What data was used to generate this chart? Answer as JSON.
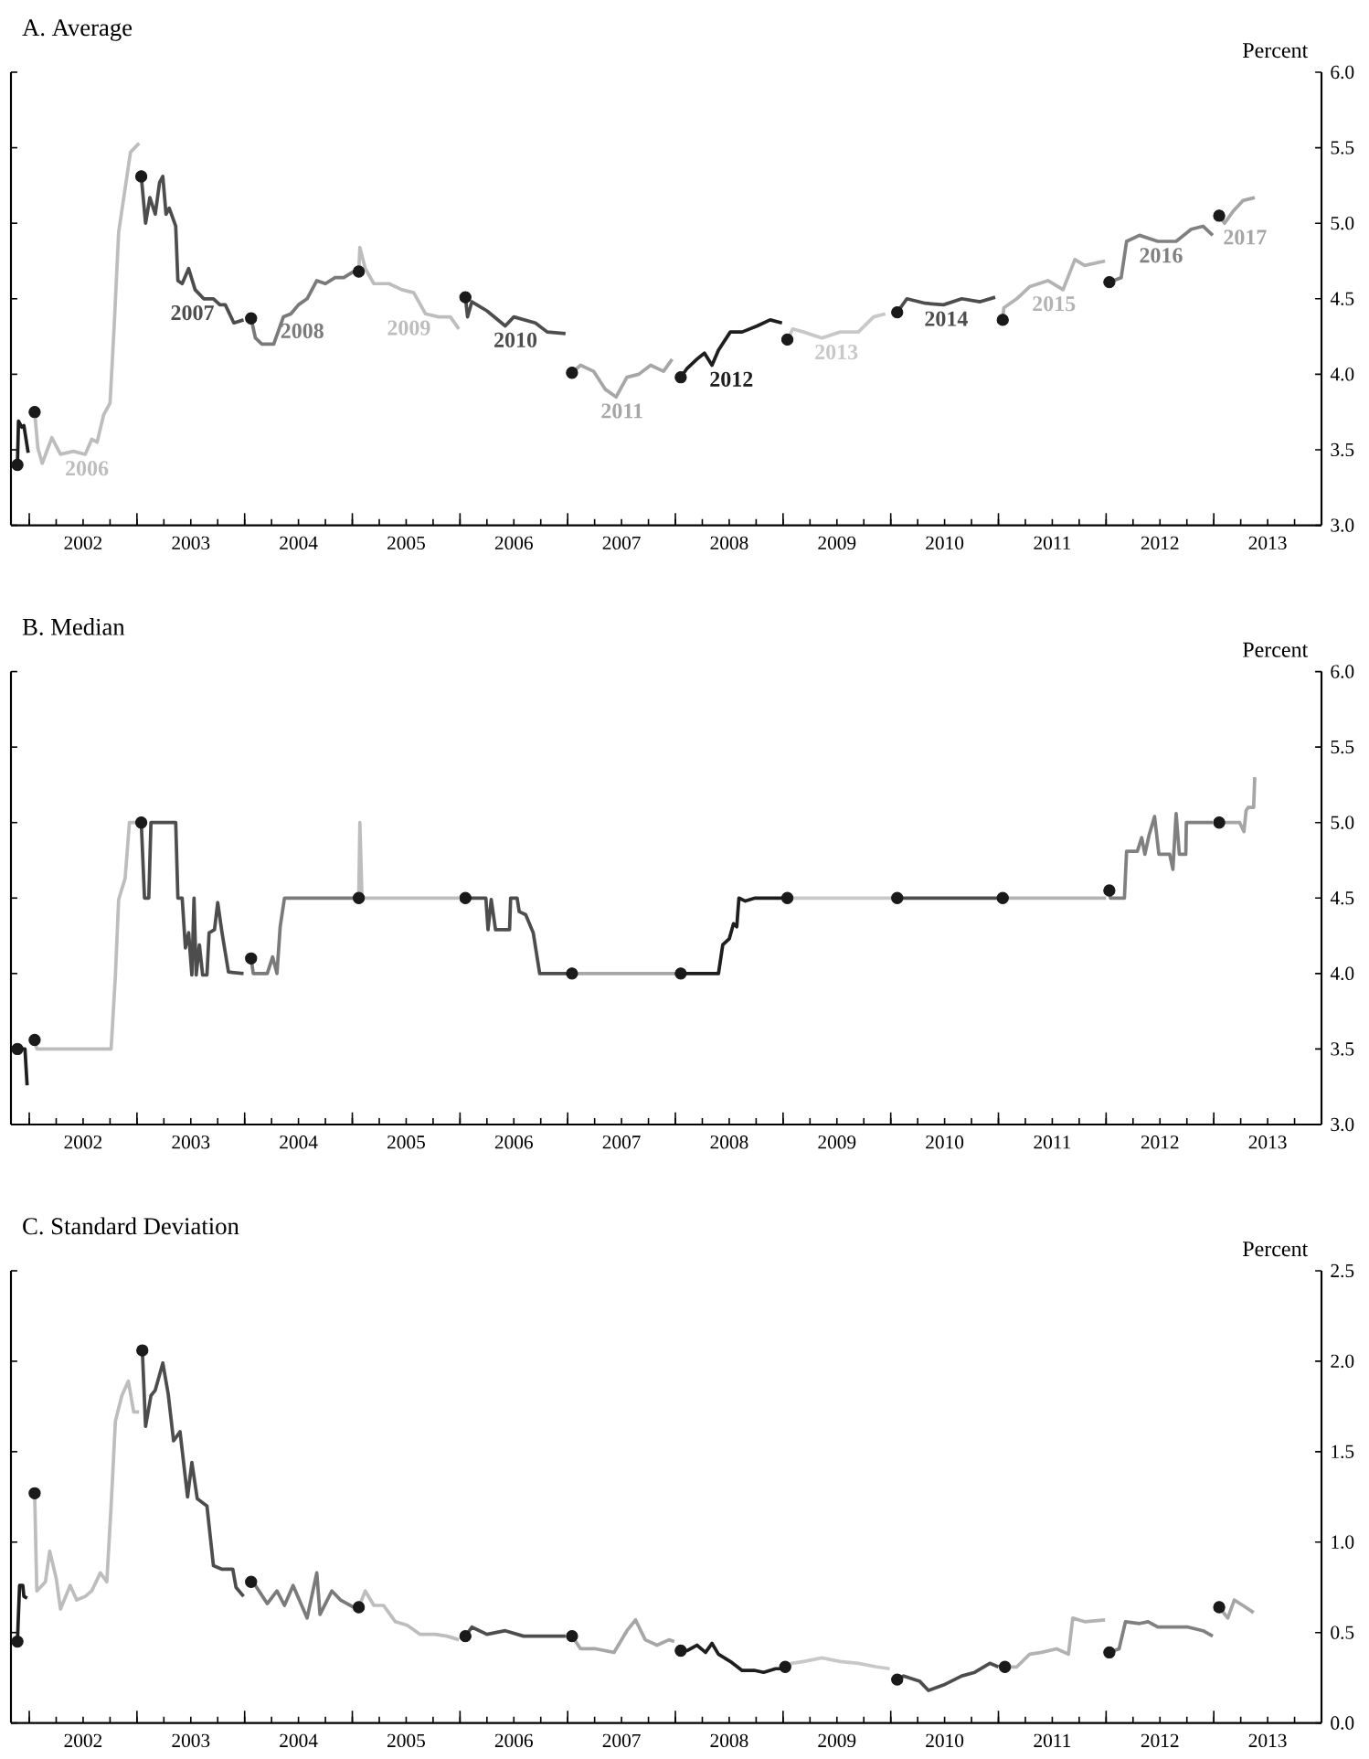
{
  "chart_data": [
    {
      "type": "line",
      "title": "A. Average",
      "ylabel": "Percent",
      "xlim": [
        2001.83,
        2014
      ],
      "ylim": [
        3,
        6
      ],
      "yticks": [
        {
          "value": 3,
          "label": "3.0"
        },
        {
          "value": 3.5,
          "label": "3.5"
        },
        {
          "value": 4,
          "label": "4.0"
        },
        {
          "value": 4.5,
          "label": "4.5"
        },
        {
          "value": 5,
          "label": "5.0"
        },
        {
          "value": 5.5,
          "label": "5.5"
        },
        {
          "value": 6,
          "label": "6.0"
        }
      ],
      "xticks": [
        {
          "value": 2002,
          "label": null
        },
        {
          "value": 2002.25,
          "label": null
        },
        {
          "value": 2002.5,
          "label": "2002"
        },
        {
          "value": 2002.75,
          "label": null
        },
        {
          "value": 2003,
          "label": null
        },
        {
          "value": 2003.25,
          "label": null
        },
        {
          "value": 2003.5,
          "label": "2003"
        },
        {
          "value": 2003.75,
          "label": null
        },
        {
          "value": 2004,
          "label": null
        },
        {
          "value": 2004.25,
          "label": null
        },
        {
          "value": 2004.5,
          "label": "2004"
        },
        {
          "value": 2004.75,
          "label": null
        },
        {
          "value": 2005,
          "label": null
        },
        {
          "value": 2005.25,
          "label": null
        },
        {
          "value": 2005.5,
          "label": "2005"
        },
        {
          "value": 2005.75,
          "label": null
        },
        {
          "value": 2006,
          "label": null
        },
        {
          "value": 2006.25,
          "label": null
        },
        {
          "value": 2006.5,
          "label": "2006"
        },
        {
          "value": 2006.75,
          "label": null
        },
        {
          "value": 2007,
          "label": null
        },
        {
          "value": 2007.25,
          "label": null
        },
        {
          "value": 2007.5,
          "label": "2007"
        },
        {
          "value": 2007.75,
          "label": null
        },
        {
          "value": 2008,
          "label": null
        },
        {
          "value": 2008.25,
          "label": null
        },
        {
          "value": 2008.5,
          "label": "2008"
        },
        {
          "value": 2008.75,
          "label": null
        },
        {
          "value": 2009,
          "label": null
        },
        {
          "value": 2009.25,
          "label": null
        },
        {
          "value": 2009.5,
          "label": "2009"
        },
        {
          "value": 2009.75,
          "label": null
        },
        {
          "value": 2010,
          "label": null
        },
        {
          "value": 2010.25,
          "label": null
        },
        {
          "value": 2010.5,
          "label": "2010"
        },
        {
          "value": 2010.75,
          "label": null
        },
        {
          "value": 2011,
          "label": null
        },
        {
          "value": 2011.25,
          "label": null
        },
        {
          "value": 2011.5,
          "label": "2011"
        },
        {
          "value": 2011.75,
          "label": null
        },
        {
          "value": 2012,
          "label": null
        },
        {
          "value": 2012.25,
          "label": null
        },
        {
          "value": 2012.5,
          "label": "2012"
        },
        {
          "value": 2012.75,
          "label": null
        },
        {
          "value": 2013,
          "label": null
        },
        {
          "value": 2013.25,
          "label": null
        },
        {
          "value": 2013.5,
          "label": "2013"
        },
        {
          "value": 2013.75,
          "label": null
        }
      ],
      "series": [
        {
          "color": "#1e1e1e",
          "x": [
            2001.89,
            2001.9,
            2001.93,
            2001.95,
            2001.99
          ],
          "values": [
            3.4,
            3.69,
            3.65,
            3.66,
            3.48
          ]
        },
        {
          "name": "2006",
          "color": "#bdbdbd",
          "x": [
            2002.05,
            2002.08,
            2002.12,
            2002.21,
            2002.29,
            2002.41,
            2002.52,
            2002.58,
            2002.63,
            2002.69,
            2002.75,
            2002.79,
            2002.83,
            2002.89,
            2002.94,
            2003.02
          ],
          "values": [
            3.75,
            3.51,
            3.41,
            3.58,
            3.47,
            3.49,
            3.47,
            3.57,
            3.55,
            3.73,
            3.81,
            4.34,
            4.94,
            5.23,
            5.47,
            5.53
          ]
        },
        {
          "name": "2007",
          "color": "#4d4d4d",
          "x": [
            2003.04,
            2003.08,
            2003.12,
            2003.17,
            2003.21,
            2003.24,
            2003.27,
            2003.3,
            2003.36,
            2003.38,
            2003.42,
            2003.48,
            2003.54,
            2003.62,
            2003.71,
            2003.77,
            2003.82,
            2003.9,
            2003.99
          ],
          "values": [
            5.31,
            5.0,
            5.17,
            5.06,
            5.27,
            5.31,
            5.06,
            5.1,
            4.98,
            4.62,
            4.6,
            4.7,
            4.56,
            4.5,
            4.5,
            4.46,
            4.46,
            4.34,
            4.36
          ]
        },
        {
          "name": "2008",
          "color": "#7a7a7a",
          "x": [
            2004.06,
            2004.1,
            2004.16,
            2004.27,
            2004.36,
            2004.43,
            2004.5,
            2004.58,
            2004.67,
            2004.75,
            2004.84,
            2004.92,
            2005.01
          ],
          "values": [
            4.37,
            4.24,
            4.2,
            4.2,
            4.38,
            4.4,
            4.46,
            4.5,
            4.62,
            4.6,
            4.64,
            4.64,
            4.68
          ]
        },
        {
          "name": "2009",
          "color": "#bdbdbd",
          "x": [
            2005.06,
            2005.07,
            2005.12,
            2005.2,
            2005.34,
            2005.46,
            2005.57,
            2005.68,
            2005.8,
            2005.91,
            2005.99
          ],
          "values": [
            4.68,
            4.84,
            4.7,
            4.6,
            4.6,
            4.56,
            4.54,
            4.4,
            4.38,
            4.38,
            4.3
          ]
        },
        {
          "name": "2010",
          "color": "#4d4d4d",
          "x": [
            2006.05,
            2006.07,
            2006.11,
            2006.25,
            2006.42,
            2006.5,
            2006.7,
            2006.81,
            2006.98
          ],
          "values": [
            4.51,
            4.38,
            4.48,
            4.42,
            4.32,
            4.38,
            4.34,
            4.28,
            4.27
          ]
        },
        {
          "name": "2011",
          "color": "#a6a6a6",
          "x": [
            2007.04,
            2007.12,
            2007.24,
            2007.35,
            2007.45,
            2007.55,
            2007.66,
            2007.77,
            2007.89,
            2007.97
          ],
          "values": [
            4.01,
            4.06,
            4.02,
            3.9,
            3.85,
            3.98,
            4.0,
            4.06,
            4.02,
            4.1
          ]
        },
        {
          "name": "2012",
          "color": "#1e1e1e",
          "x": [
            2008.05,
            2008.11,
            2008.2,
            2008.27,
            2008.34,
            2008.4,
            2008.51,
            2008.62,
            2008.76,
            2008.88,
            2008.99
          ],
          "values": [
            3.98,
            4.04,
            4.1,
            4.14,
            4.06,
            4.16,
            4.28,
            4.28,
            4.32,
            4.36,
            4.34
          ]
        },
        {
          "name": "2013",
          "color": "#c8c8c8",
          "x": [
            2009.04,
            2009.09,
            2009.19,
            2009.36,
            2009.53,
            2009.7,
            2009.84,
            2009.95
          ],
          "values": [
            4.23,
            4.3,
            4.28,
            4.24,
            4.28,
            4.28,
            4.38,
            4.4
          ]
        },
        {
          "name": "2014",
          "color": "#4d4d4d",
          "x": [
            2010.06,
            2010.15,
            2010.32,
            2010.49,
            2010.66,
            2010.83,
            2010.97
          ],
          "values": [
            4.41,
            4.5,
            4.47,
            4.46,
            4.5,
            4.48,
            4.51
          ]
        },
        {
          "name": "2015",
          "color": "#b3b3b3",
          "x": [
            2011.04,
            2011.05,
            2011.17,
            2011.29,
            2011.46,
            2011.6,
            2011.71,
            2011.8,
            2011.99
          ],
          "values": [
            4.36,
            4.44,
            4.5,
            4.58,
            4.62,
            4.56,
            4.76,
            4.72,
            4.75
          ]
        },
        {
          "name": "2016",
          "color": "#808080",
          "x": [
            2012.03,
            2012.14,
            2012.19,
            2012.31,
            2012.48,
            2012.65,
            2012.79,
            2012.9,
            2012.99
          ],
          "values": [
            4.61,
            4.64,
            4.88,
            4.92,
            4.88,
            4.88,
            4.96,
            4.98,
            4.92
          ]
        },
        {
          "name": "2017",
          "color": "#a6a6a6",
          "x": [
            2013.05,
            2013.1,
            2013.18,
            2013.27,
            2013.38
          ],
          "values": [
            5.05,
            5.0,
            5.08,
            5.15,
            5.17
          ]
        },
        {
          "type": "scatter",
          "color": "#1a1a1a",
          "x": [
            2001.89,
            2002.05,
            2003.04,
            2004.06,
            2005.06,
            2006.05,
            2007.04,
            2008.05,
            2009.04,
            2010.06,
            2011.04,
            2012.03,
            2013.05
          ],
          "values": [
            3.4,
            3.75,
            5.31,
            4.37,
            4.68,
            4.51,
            4.01,
            3.98,
            4.23,
            4.41,
            4.36,
            4.61,
            5.05
          ]
        }
      ]
    },
    {
      "type": "line",
      "title": "B. Median",
      "ylabel": "Percent",
      "xlim": [
        2001.83,
        2014
      ],
      "ylim": [
        3,
        6
      ],
      "yticks": [
        {
          "value": 3,
          "label": "3.0"
        },
        {
          "value": 3.5,
          "label": "3.5"
        },
        {
          "value": 4,
          "label": "4.0"
        },
        {
          "value": 4.5,
          "label": "4.5"
        },
        {
          "value": 5,
          "label": "5.0"
        },
        {
          "value": 5.5,
          "label": "5.5"
        },
        {
          "value": 6,
          "label": "6.0"
        }
      ],
      "xticks": [
        {
          "value": 2002,
          "label": null
        },
        {
          "value": 2002.25,
          "label": null
        },
        {
          "value": 2002.5,
          "label": "2002"
        },
        {
          "value": 2002.75,
          "label": null
        },
        {
          "value": 2003,
          "label": null
        },
        {
          "value": 2003.25,
          "label": null
        },
        {
          "value": 2003.5,
          "label": "2003"
        },
        {
          "value": 2003.75,
          "label": null
        },
        {
          "value": 2004,
          "label": null
        },
        {
          "value": 2004.25,
          "label": null
        },
        {
          "value": 2004.5,
          "label": "2004"
        },
        {
          "value": 2004.75,
          "label": null
        },
        {
          "value": 2005,
          "label": null
        },
        {
          "value": 2005.25,
          "label": null
        },
        {
          "value": 2005.5,
          "label": "2005"
        },
        {
          "value": 2005.75,
          "label": null
        },
        {
          "value": 2006,
          "label": null
        },
        {
          "value": 2006.25,
          "label": null
        },
        {
          "value": 2006.5,
          "label": "2006"
        },
        {
          "value": 2006.75,
          "label": null
        },
        {
          "value": 2007,
          "label": null
        },
        {
          "value": 2007.25,
          "label": null
        },
        {
          "value": 2007.5,
          "label": "2007"
        },
        {
          "value": 2007.75,
          "label": null
        },
        {
          "value": 2008,
          "label": null
        },
        {
          "value": 2008.25,
          "label": null
        },
        {
          "value": 2008.5,
          "label": "2008"
        },
        {
          "value": 2008.75,
          "label": null
        },
        {
          "value": 2009,
          "label": null
        },
        {
          "value": 2009.25,
          "label": null
        },
        {
          "value": 2009.5,
          "label": "2009"
        },
        {
          "value": 2009.75,
          "label": null
        },
        {
          "value": 2010,
          "label": null
        },
        {
          "value": 2010.25,
          "label": null
        },
        {
          "value": 2010.5,
          "label": "2010"
        },
        {
          "value": 2010.75,
          "label": null
        },
        {
          "value": 2011,
          "label": null
        },
        {
          "value": 2011.25,
          "label": null
        },
        {
          "value": 2011.5,
          "label": "2011"
        },
        {
          "value": 2011.75,
          "label": null
        },
        {
          "value": 2012,
          "label": null
        },
        {
          "value": 2012.25,
          "label": null
        },
        {
          "value": 2012.5,
          "label": "2012"
        },
        {
          "value": 2012.75,
          "label": null
        },
        {
          "value": 2013,
          "label": null
        },
        {
          "value": 2013.25,
          "label": null
        },
        {
          "value": 2013.5,
          "label": "2013"
        },
        {
          "value": 2013.75,
          "label": null
        }
      ],
      "series": [
        {
          "color": "#1e1e1e",
          "x": [
            2001.89,
            2001.96,
            2001.98
          ],
          "values": [
            3.5,
            3.5,
            3.26
          ]
        },
        {
          "color": "#bdbdbd",
          "x": [
            2002.05,
            2002.07,
            2002.76,
            2002.8,
            2002.83,
            2002.89,
            2002.93,
            2003.0
          ],
          "values": [
            3.56,
            3.5,
            3.5,
            3.99,
            4.49,
            4.63,
            5.0,
            5.0
          ]
        },
        {
          "color": "#4d4d4d",
          "x": [
            2003.04,
            2003.07,
            2003.11,
            2003.13,
            2003.36,
            2003.38,
            2003.42,
            2003.45,
            2003.48,
            2003.51,
            2003.53,
            2003.55,
            2003.58,
            2003.61,
            2003.65,
            2003.67,
            2003.72,
            2003.75,
            2003.79,
            2003.85,
            2003.99
          ],
          "values": [
            5.0,
            4.5,
            4.5,
            5.0,
            5.0,
            4.5,
            4.5,
            4.17,
            4.27,
            3.99,
            4.5,
            3.99,
            4.19,
            3.99,
            3.99,
            4.27,
            4.29,
            4.47,
            4.27,
            4.01,
            4.0
          ]
        },
        {
          "color": "#7a7a7a",
          "x": [
            2004.06,
            2004.08,
            2004.21,
            2004.26,
            2004.3,
            2004.33,
            2004.37,
            2005.01
          ],
          "values": [
            4.1,
            4.0,
            4.0,
            4.11,
            4.0,
            4.31,
            4.5,
            4.5
          ]
        },
        {
          "color": "#bdbdbd",
          "x": [
            2005.06,
            2005.07,
            2005.09,
            2005.99
          ],
          "values": [
            4.5,
            5.0,
            4.5,
            4.5
          ]
        },
        {
          "color": "#4d4d4d",
          "x": [
            2006.05,
            2006.24,
            2006.26,
            2006.29,
            2006.33,
            2006.46,
            2006.47,
            2006.53,
            2006.55,
            2006.61,
            2006.68,
            2006.74,
            2006.99
          ],
          "values": [
            4.5,
            4.5,
            4.29,
            4.49,
            4.29,
            4.29,
            4.5,
            4.5,
            4.41,
            4.39,
            4.27,
            4.0,
            4.0
          ]
        },
        {
          "color": "#a6a6a6",
          "x": [
            2007.04,
            2008.0
          ],
          "values": [
            4.0,
            4.0
          ]
        },
        {
          "color": "#1e1e1e",
          "x": [
            2008.05,
            2008.4,
            2008.44,
            2008.5,
            2008.54,
            2008.57,
            2008.59,
            2008.65,
            2008.74,
            2008.99
          ],
          "values": [
            4.0,
            4.0,
            4.19,
            4.23,
            4.33,
            4.31,
            4.5,
            4.48,
            4.5,
            4.5
          ]
        },
        {
          "color": "#c8c8c8",
          "x": [
            2009.04,
            2010.01
          ],
          "values": [
            4.5,
            4.5
          ]
        },
        {
          "color": "#4d4d4d",
          "x": [
            2010.06,
            2011.0
          ],
          "values": [
            4.5,
            4.5
          ]
        },
        {
          "color": "#b3b3b3",
          "x": [
            2011.04,
            2012.0
          ],
          "values": [
            4.5,
            4.5
          ]
        },
        {
          "color": "#808080",
          "x": [
            2012.03,
            2012.04,
            2012.17,
            2012.19,
            2012.29,
            2012.33,
            2012.36,
            2012.4,
            2012.45,
            2012.49,
            2012.59,
            2012.62,
            2012.65,
            2012.68,
            2012.74,
            2012.745,
            2012.99
          ],
          "values": [
            4.55,
            4.5,
            4.5,
            4.81,
            4.81,
            4.9,
            4.79,
            4.92,
            5.04,
            4.79,
            4.79,
            4.69,
            5.06,
            4.79,
            4.79,
            5.0,
            5.0
          ]
        },
        {
          "color": "#a6a6a6",
          "x": [
            2013.05,
            2013.24,
            2013.28,
            2013.3,
            2013.32,
            2013.37,
            2013.38
          ],
          "values": [
            5.0,
            5.0,
            4.94,
            5.08,
            5.1,
            5.1,
            5.3
          ]
        },
        {
          "type": "scatter",
          "color": "#1a1a1a",
          "x": [
            2001.89,
            2002.05,
            2003.04,
            2004.06,
            2005.06,
            2006.05,
            2007.04,
            2008.05,
            2009.04,
            2010.06,
            2011.04,
            2012.03,
            2013.05
          ],
          "values": [
            3.5,
            3.56,
            5.0,
            4.1,
            4.5,
            4.5,
            4.0,
            4.0,
            4.5,
            4.5,
            4.5,
            4.55,
            5.0
          ]
        }
      ]
    },
    {
      "type": "line",
      "title": "C. Standard Deviation",
      "ylabel": "Percent",
      "xlim": [
        2001.83,
        2014
      ],
      "ylim": [
        0,
        2.5
      ],
      "yticks": [
        {
          "value": 0,
          "label": "0.0"
        },
        {
          "value": 0.5,
          "label": "0.5"
        },
        {
          "value": 1,
          "label": "1.0"
        },
        {
          "value": 1.5,
          "label": "1.5"
        },
        {
          "value": 2,
          "label": "2.0"
        },
        {
          "value": 2.5,
          "label": "2.5"
        }
      ],
      "xticks": [
        {
          "value": 2002,
          "label": null
        },
        {
          "value": 2002.25,
          "label": null
        },
        {
          "value": 2002.5,
          "label": "2002"
        },
        {
          "value": 2002.75,
          "label": null
        },
        {
          "value": 2003,
          "label": null
        },
        {
          "value": 2003.25,
          "label": null
        },
        {
          "value": 2003.5,
          "label": "2003"
        },
        {
          "value": 2003.75,
          "label": null
        },
        {
          "value": 2004,
          "label": null
        },
        {
          "value": 2004.25,
          "label": null
        },
        {
          "value": 2004.5,
          "label": "2004"
        },
        {
          "value": 2004.75,
          "label": null
        },
        {
          "value": 2005,
          "label": null
        },
        {
          "value": 2005.25,
          "label": null
        },
        {
          "value": 2005.5,
          "label": "2005"
        },
        {
          "value": 2005.75,
          "label": null
        },
        {
          "value": 2006,
          "label": null
        },
        {
          "value": 2006.25,
          "label": null
        },
        {
          "value": 2006.5,
          "label": "2006"
        },
        {
          "value": 2006.75,
          "label": null
        },
        {
          "value": 2007,
          "label": null
        },
        {
          "value": 2007.25,
          "label": null
        },
        {
          "value": 2007.5,
          "label": "2007"
        },
        {
          "value": 2007.75,
          "label": null
        },
        {
          "value": 2008,
          "label": null
        },
        {
          "value": 2008.25,
          "label": null
        },
        {
          "value": 2008.5,
          "label": "2008"
        },
        {
          "value": 2008.75,
          "label": null
        },
        {
          "value": 2009,
          "label": null
        },
        {
          "value": 2009.25,
          "label": null
        },
        {
          "value": 2009.5,
          "label": "2009"
        },
        {
          "value": 2009.75,
          "label": null
        },
        {
          "value": 2010,
          "label": null
        },
        {
          "value": 2010.25,
          "label": null
        },
        {
          "value": 2010.5,
          "label": "2010"
        },
        {
          "value": 2010.75,
          "label": null
        },
        {
          "value": 2011,
          "label": null
        },
        {
          "value": 2011.25,
          "label": null
        },
        {
          "value": 2011.5,
          "label": "2011"
        },
        {
          "value": 2011.75,
          "label": null
        },
        {
          "value": 2012,
          "label": null
        },
        {
          "value": 2012.25,
          "label": null
        },
        {
          "value": 2012.5,
          "label": "2012"
        },
        {
          "value": 2012.75,
          "label": null
        },
        {
          "value": 2013,
          "label": null
        },
        {
          "value": 2013.25,
          "label": null
        },
        {
          "value": 2013.5,
          "label": "2013"
        },
        {
          "value": 2013.75,
          "label": null
        }
      ],
      "series": [
        {
          "color": "#1e1e1e",
          "x": [
            2001.89,
            2001.91,
            2001.94,
            2001.95,
            2001.98
          ],
          "values": [
            0.45,
            0.76,
            0.76,
            0.7,
            0.69
          ]
        },
        {
          "color": "#bdbdbd",
          "x": [
            2002.05,
            2002.07,
            2002.15,
            2002.19,
            2002.25,
            2002.29,
            2002.38,
            2002.44,
            2002.52,
            2002.58,
            2002.66,
            2002.72,
            2002.76,
            2002.8,
            2002.86,
            2002.92,
            2002.97,
            2003.02
          ],
          "values": [
            1.27,
            0.73,
            0.78,
            0.95,
            0.8,
            0.63,
            0.76,
            0.68,
            0.7,
            0.73,
            0.83,
            0.78,
            1.2,
            1.67,
            1.81,
            1.89,
            1.72,
            1.72
          ]
        },
        {
          "color": "#4d4d4d",
          "x": [
            2003.05,
            2003.08,
            2003.13,
            2003.17,
            2003.24,
            2003.29,
            2003.34,
            2003.4,
            2003.47,
            2003.51,
            2003.56,
            2003.65,
            2003.71,
            2003.79,
            2003.89,
            2003.92,
            2003.99
          ],
          "values": [
            2.06,
            1.64,
            1.81,
            1.84,
            1.99,
            1.82,
            1.56,
            1.61,
            1.25,
            1.44,
            1.24,
            1.2,
            0.87,
            0.85,
            0.85,
            0.75,
            0.7
          ]
        },
        {
          "color": "#7a7a7a",
          "x": [
            2004.06,
            2004.1,
            2004.21,
            2004.3,
            2004.37,
            2004.45,
            2004.58,
            2004.67,
            2004.7,
            2004.81,
            2004.89,
            2005.01
          ],
          "values": [
            0.78,
            0.76,
            0.66,
            0.73,
            0.65,
            0.76,
            0.58,
            0.83,
            0.6,
            0.73,
            0.68,
            0.64
          ]
        },
        {
          "color": "#bdbdbd",
          "x": [
            2005.06,
            2005.12,
            2005.2,
            2005.29,
            2005.4,
            2005.51,
            2005.63,
            2005.77,
            2005.88,
            2005.99
          ],
          "values": [
            0.64,
            0.73,
            0.65,
            0.65,
            0.56,
            0.54,
            0.49,
            0.49,
            0.48,
            0.46
          ]
        },
        {
          "color": "#4d4d4d",
          "x": [
            2006.05,
            2006.11,
            2006.25,
            2006.42,
            2006.59,
            2006.82,
            2006.98
          ],
          "values": [
            0.48,
            0.53,
            0.49,
            0.51,
            0.48,
            0.48,
            0.48
          ]
        },
        {
          "color": "#a6a6a6",
          "x": [
            2007.04,
            2007.12,
            2007.26,
            2007.43,
            2007.55,
            2007.63,
            2007.72,
            2007.83,
            2007.94,
            2007.99
          ],
          "values": [
            0.48,
            0.41,
            0.41,
            0.39,
            0.51,
            0.57,
            0.46,
            0.43,
            0.46,
            0.45
          ]
        },
        {
          "color": "#1e1e1e",
          "x": [
            2008.05,
            2008.11,
            2008.2,
            2008.28,
            2008.34,
            2008.4,
            2008.51,
            2008.62,
            2008.74,
            2008.82,
            2008.93,
            2008.99
          ],
          "values": [
            0.4,
            0.4,
            0.43,
            0.39,
            0.44,
            0.38,
            0.34,
            0.29,
            0.29,
            0.28,
            0.3,
            0.3
          ]
        },
        {
          "color": "#c8c8c8",
          "x": [
            2009.02,
            2009.08,
            2009.19,
            2009.36,
            2009.53,
            2009.7,
            2009.87,
            2009.99
          ],
          "values": [
            0.31,
            0.33,
            0.34,
            0.36,
            0.34,
            0.33,
            0.31,
            0.3
          ]
        },
        {
          "color": "#4d4d4d",
          "x": [
            2010.06,
            2010.12,
            2010.27,
            2010.35,
            2010.49,
            2010.66,
            2010.78,
            2010.92,
            2011.0
          ],
          "values": [
            0.24,
            0.26,
            0.23,
            0.18,
            0.21,
            0.26,
            0.28,
            0.33,
            0.31
          ]
        },
        {
          "color": "#b3b3b3",
          "x": [
            2011.06,
            2011.17,
            2011.29,
            2011.4,
            2011.54,
            2011.65,
            2011.69,
            2011.8,
            2011.99
          ],
          "values": [
            0.31,
            0.31,
            0.38,
            0.39,
            0.41,
            0.38,
            0.58,
            0.56,
            0.57
          ]
        },
        {
          "color": "#808080",
          "x": [
            2012.03,
            2012.12,
            2012.18,
            2012.31,
            2012.39,
            2012.48,
            2012.65,
            2012.76,
            2012.9,
            2012.99
          ],
          "values": [
            0.39,
            0.41,
            0.56,
            0.55,
            0.56,
            0.53,
            0.53,
            0.53,
            0.51,
            0.48
          ]
        },
        {
          "color": "#a6a6a6",
          "x": [
            2013.05,
            2013.13,
            2013.19,
            2013.27,
            2013.37
          ],
          "values": [
            0.64,
            0.58,
            0.68,
            0.65,
            0.61
          ]
        },
        {
          "type": "scatter",
          "color": "#1a1a1a",
          "x": [
            2001.89,
            2002.05,
            2003.05,
            2004.06,
            2005.06,
            2006.05,
            2007.04,
            2008.05,
            2009.02,
            2010.06,
            2011.06,
            2012.03,
            2013.05
          ],
          "values": [
            0.45,
            1.27,
            2.06,
            0.78,
            0.64,
            0.48,
            0.48,
            0.4,
            0.31,
            0.24,
            0.31,
            0.39,
            0.64
          ]
        }
      ]
    }
  ]
}
